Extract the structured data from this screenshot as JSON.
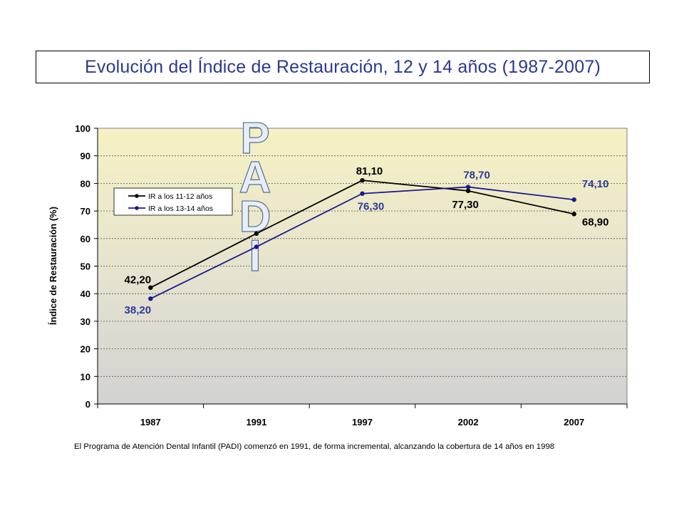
{
  "title": "Evolución del Índice de Restauración, 12 y 14 años (1987-2007)",
  "footnote": "El Programa de Atención Dental Infantil (PADI) comenzó en 1991, de forma incremental, alcanzando la cobertura de 14 años en 1998",
  "overlay_text": "PADI",
  "chart_data": {
    "type": "line",
    "categories": [
      "1987",
      "1991",
      "1997",
      "2002",
      "2007"
    ],
    "ylabel": "Índice de Restauración (%)",
    "xlabel": "",
    "ylim": [
      0,
      100
    ],
    "yticks": [
      0,
      10,
      20,
      30,
      40,
      50,
      60,
      70,
      80,
      90,
      100
    ],
    "grid": "horizontal-dashed",
    "legend_position": "top-left",
    "series": [
      {
        "name": "IR a los 11-12 años",
        "color": "#000000",
        "values": [
          42.2,
          61.8,
          81.1,
          77.3,
          68.9
        ],
        "labels": [
          "42,20",
          "",
          "81,10",
          "77,30",
          "68,90"
        ]
      },
      {
        "name": "IR a los 13-14 años",
        "color": "#1a1a8c",
        "values": [
          38.2,
          57.0,
          76.3,
          78.7,
          74.1
        ],
        "labels": [
          "38,20",
          "",
          "76,30",
          "78,70",
          "74,10"
        ]
      }
    ],
    "label_colors": [
      "#000000",
      "#2b3a99"
    ]
  }
}
